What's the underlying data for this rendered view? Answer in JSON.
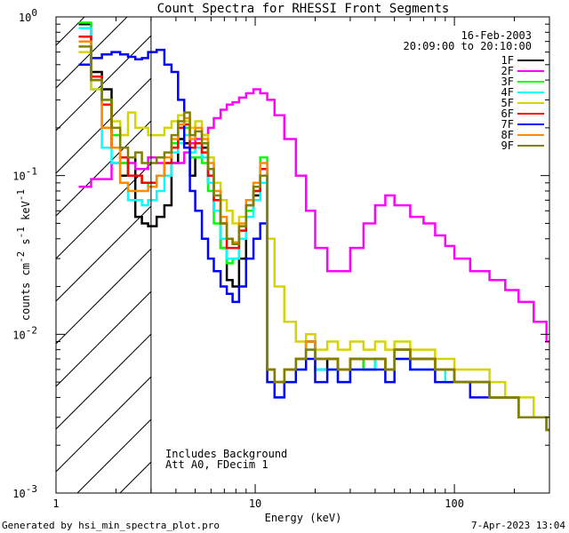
{
  "chart_data": {
    "type": "line",
    "title": "Count Spectra for RHESSI Front Segments",
    "xlabel": "Energy (keV)",
    "ylabel_main": "counts cm",
    "ylabel_exp1": "-2",
    "ylabel_mid": " s",
    "ylabel_exp2": "-1",
    "ylabel_mid2": " keV",
    "ylabel_exp3": "-1",
    "x_scale": "log",
    "y_scale": "log",
    "xlim": [
      1,
      300
    ],
    "ylim": [
      0.001,
      1
    ],
    "x_ticks": [
      {
        "value": 1,
        "label": "1"
      },
      {
        "value": 10,
        "label": "10"
      },
      {
        "value": 100,
        "label": "100"
      }
    ],
    "y_ticks": [
      {
        "value": 0.001,
        "base": "10",
        "exp": "-3"
      },
      {
        "value": 0.01,
        "base": "10",
        "exp": "-2"
      },
      {
        "value": 0.1,
        "base": "10",
        "exp": "-1"
      },
      {
        "value": 1,
        "base": "10",
        "exp": "0"
      }
    ],
    "date": "16-Feb-2003",
    "time_range": "20:09:00 to 20:10:00",
    "hatched_below_keV": 3,
    "notes": [
      "Includes Background",
      "Att A0, FDecim 1"
    ],
    "series": [
      {
        "name": "1F",
        "color": "#000000",
        "x": [
          1.3,
          1.5,
          1.7,
          1.9,
          2.1,
          2.3,
          2.5,
          2.7,
          2.9,
          3.2,
          3.5,
          3.8,
          4.1,
          4.4,
          4.7,
          5.0,
          5.4,
          5.8,
          6.2,
          6.7,
          7.2,
          7.7,
          8.3,
          9.0,
          9.8,
          10.6,
          11.5,
          12.5,
          14,
          16,
          18,
          20,
          23,
          26,
          30,
          35,
          40,
          45,
          50,
          60,
          70,
          80,
          90,
          100,
          120,
          150,
          180,
          210,
          250,
          290
        ],
        "y": [
          0.9,
          0.45,
          0.35,
          0.15,
          0.1,
          0.13,
          0.055,
          0.05,
          0.048,
          0.055,
          0.065,
          0.12,
          0.17,
          0.16,
          0.1,
          0.13,
          0.15,
          0.09,
          0.06,
          0.035,
          0.022,
          0.02,
          0.03,
          0.06,
          0.075,
          0.1,
          0.006,
          0.005,
          0.006,
          0.007,
          0.009,
          0.006,
          0.007,
          0.006,
          0.007,
          0.006,
          0.007,
          0.006,
          0.008,
          0.007,
          0.007,
          0.006,
          0.006,
          0.005,
          0.005,
          0.004,
          0.004,
          0.003,
          0.003,
          0.0025
        ]
      },
      {
        "name": "2F",
        "color": "#ff00ff",
        "x": [
          1.3,
          1.5,
          1.7,
          1.9,
          2.1,
          2.3,
          2.5,
          2.7,
          2.9,
          3.2,
          3.5,
          3.8,
          4.1,
          4.4,
          4.7,
          5.0,
          5.4,
          5.8,
          6.2,
          6.7,
          7.2,
          7.7,
          8.3,
          9.0,
          9.8,
          10.6,
          11.5,
          12.5,
          14,
          16,
          18,
          20,
          23,
          26,
          30,
          35,
          40,
          45,
          50,
          60,
          70,
          80,
          90,
          100,
          120,
          150,
          180,
          210,
          250,
          290
        ],
        "y": [
          0.085,
          0.095,
          0.095,
          0.12,
          0.12,
          0.12,
          0.11,
          0.11,
          0.13,
          0.12,
          0.12,
          0.12,
          0.12,
          0.14,
          0.16,
          0.17,
          0.18,
          0.2,
          0.23,
          0.26,
          0.28,
          0.29,
          0.31,
          0.33,
          0.35,
          0.33,
          0.3,
          0.24,
          0.17,
          0.1,
          0.06,
          0.035,
          0.025,
          0.025,
          0.035,
          0.05,
          0.065,
          0.075,
          0.065,
          0.055,
          0.05,
          0.042,
          0.036,
          0.03,
          0.025,
          0.022,
          0.019,
          0.016,
          0.012,
          0.009
        ]
      },
      {
        "name": "3F",
        "color": "#00ff00",
        "x": [
          1.3,
          1.5,
          1.7,
          1.9,
          2.1,
          2.3,
          2.5,
          2.7,
          2.9,
          3.2,
          3.5,
          3.8,
          4.1,
          4.4,
          4.7,
          5.0,
          5.4,
          5.8,
          6.2,
          6.7,
          7.2,
          7.7,
          8.3,
          9.0,
          9.8,
          10.6,
          11.5,
          12.5,
          14,
          16,
          18,
          20,
          23,
          26,
          30,
          35,
          40,
          45,
          50,
          60,
          70,
          80,
          90,
          100,
          120,
          150,
          180,
          210,
          250,
          290
        ],
        "y": [
          0.92,
          0.4,
          0.3,
          0.18,
          0.12,
          0.1,
          0.1,
          0.09,
          0.085,
          0.1,
          0.12,
          0.16,
          0.2,
          0.2,
          0.13,
          0.13,
          0.12,
          0.08,
          0.05,
          0.035,
          0.028,
          0.03,
          0.04,
          0.06,
          0.08,
          0.13,
          0.006,
          0.005,
          0.006,
          0.007,
          0.009,
          0.007,
          0.007,
          0.006,
          0.007,
          0.006,
          0.007,
          0.006,
          0.008,
          0.007,
          0.007,
          0.006,
          0.006,
          0.005,
          0.005,
          0.004,
          0.004,
          0.003,
          0.003,
          0.0025
        ]
      },
      {
        "name": "4F",
        "color": "#00ffff",
        "x": [
          1.3,
          1.5,
          1.7,
          1.9,
          2.1,
          2.3,
          2.5,
          2.7,
          2.9,
          3.2,
          3.5,
          3.8,
          4.1,
          4.4,
          4.7,
          5.0,
          5.4,
          5.8,
          6.2,
          6.7,
          7.2,
          7.7,
          8.3,
          9.0,
          9.8,
          10.6,
          11.5,
          12.5,
          14,
          16,
          18,
          20,
          23,
          26,
          30,
          35,
          40,
          45,
          50,
          60,
          70,
          80,
          90,
          100,
          120,
          150,
          180,
          210,
          250,
          290
        ],
        "y": [
          0.85,
          0.35,
          0.15,
          0.12,
          0.09,
          0.07,
          0.07,
          0.065,
          0.07,
          0.08,
          0.1,
          0.14,
          0.16,
          0.18,
          0.14,
          0.15,
          0.13,
          0.09,
          0.06,
          0.04,
          0.03,
          0.03,
          0.04,
          0.055,
          0.07,
          0.09,
          0.005,
          0.004,
          0.005,
          0.006,
          0.008,
          0.006,
          0.006,
          0.005,
          0.006,
          0.006,
          0.007,
          0.006,
          0.007,
          0.006,
          0.006,
          0.006,
          0.005,
          0.005,
          0.005,
          0.004,
          0.004,
          0.003,
          0.003,
          0.0025
        ]
      },
      {
        "name": "5F",
        "color": "#d4d400",
        "x": [
          1.3,
          1.5,
          1.7,
          1.9,
          2.1,
          2.3,
          2.5,
          2.7,
          2.9,
          3.2,
          3.5,
          3.8,
          4.1,
          4.4,
          4.7,
          5.0,
          5.4,
          5.8,
          6.2,
          6.7,
          7.2,
          7.7,
          8.3,
          9.0,
          9.8,
          10.6,
          11.5,
          12.5,
          14,
          16,
          18,
          20,
          23,
          26,
          30,
          35,
          40,
          45,
          50,
          60,
          70,
          80,
          90,
          100,
          120,
          150,
          180,
          210,
          250,
          290
        ],
        "y": [
          0.6,
          0.35,
          0.2,
          0.22,
          0.18,
          0.25,
          0.2,
          0.2,
          0.18,
          0.18,
          0.2,
          0.22,
          0.24,
          0.22,
          0.2,
          0.22,
          0.18,
          0.13,
          0.09,
          0.07,
          0.06,
          0.05,
          0.055,
          0.065,
          0.08,
          0.1,
          0.04,
          0.02,
          0.012,
          0.009,
          0.01,
          0.008,
          0.009,
          0.008,
          0.009,
          0.008,
          0.009,
          0.008,
          0.009,
          0.008,
          0.008,
          0.007,
          0.007,
          0.006,
          0.006,
          0.005,
          0.004,
          0.004,
          0.003,
          0.003
        ]
      },
      {
        "name": "6F",
        "color": "#ff0000",
        "x": [
          1.3,
          1.5,
          1.7,
          1.9,
          2.1,
          2.3,
          2.5,
          2.7,
          2.9,
          3.2,
          3.5,
          3.8,
          4.1,
          4.4,
          4.7,
          5.0,
          5.4,
          5.8,
          6.2,
          6.7,
          7.2,
          7.7,
          8.3,
          9.0,
          9.8,
          10.6,
          11.5,
          12.5,
          14,
          16,
          18,
          20,
          23,
          26,
          30,
          35,
          40,
          45,
          50,
          60,
          70,
          80,
          90,
          100,
          120,
          150,
          180,
          210,
          250,
          290
        ],
        "y": [
          0.75,
          0.42,
          0.28,
          0.15,
          0.13,
          0.1,
          0.1,
          0.09,
          0.09,
          0.1,
          0.12,
          0.15,
          0.2,
          0.21,
          0.15,
          0.16,
          0.14,
          0.1,
          0.07,
          0.05,
          0.035,
          0.035,
          0.045,
          0.065,
          0.08,
          0.11,
          0.006,
          0.005,
          0.006,
          0.007,
          0.009,
          0.007,
          0.007,
          0.006,
          0.007,
          0.007,
          0.007,
          0.006,
          0.008,
          0.007,
          0.007,
          0.006,
          0.006,
          0.005,
          0.005,
          0.004,
          0.004,
          0.003,
          0.003,
          0.0025
        ]
      },
      {
        "name": "7F",
        "color": "#0000ff",
        "x": [
          1.3,
          1.5,
          1.7,
          1.9,
          2.1,
          2.3,
          2.5,
          2.7,
          2.9,
          3.2,
          3.5,
          3.8,
          4.1,
          4.4,
          4.7,
          5.0,
          5.4,
          5.8,
          6.2,
          6.7,
          7.2,
          7.7,
          8.3,
          9.0,
          9.8,
          10.6,
          11.5,
          12.5,
          14,
          16,
          18,
          20,
          23,
          26,
          30,
          35,
          40,
          45,
          50,
          60,
          70,
          80,
          90,
          100,
          120,
          150,
          180,
          210,
          250,
          290
        ],
        "y": [
          0.5,
          0.55,
          0.58,
          0.6,
          0.58,
          0.56,
          0.54,
          0.55,
          0.6,
          0.62,
          0.5,
          0.45,
          0.3,
          0.15,
          0.08,
          0.06,
          0.04,
          0.03,
          0.025,
          0.02,
          0.018,
          0.016,
          0.02,
          0.03,
          0.04,
          0.05,
          0.005,
          0.004,
          0.005,
          0.006,
          0.007,
          0.005,
          0.006,
          0.005,
          0.006,
          0.006,
          0.006,
          0.005,
          0.007,
          0.006,
          0.006,
          0.005,
          0.005,
          0.005,
          0.004,
          0.004,
          0.004,
          0.003,
          0.003,
          0.0025
        ]
      },
      {
        "name": "8F",
        "color": "#ff8c00",
        "x": [
          1.3,
          1.5,
          1.7,
          1.9,
          2.1,
          2.3,
          2.5,
          2.7,
          2.9,
          3.2,
          3.5,
          3.8,
          4.1,
          4.4,
          4.7,
          5.0,
          5.4,
          5.8,
          6.2,
          6.7,
          7.2,
          7.7,
          8.3,
          9.0,
          9.8,
          10.6,
          11.5,
          12.5,
          14,
          16,
          18,
          20,
          23,
          26,
          30,
          35,
          40,
          45,
          50,
          60,
          70,
          80,
          90,
          100,
          120,
          150,
          180,
          210,
          250,
          290
        ],
        "y": [
          0.7,
          0.4,
          0.2,
          0.15,
          0.09,
          0.08,
          0.08,
          0.08,
          0.085,
          0.1,
          0.13,
          0.17,
          0.21,
          0.23,
          0.17,
          0.2,
          0.17,
          0.12,
          0.08,
          0.055,
          0.04,
          0.038,
          0.05,
          0.07,
          0.09,
          0.12,
          0.006,
          0.005,
          0.006,
          0.007,
          0.009,
          0.007,
          0.007,
          0.006,
          0.007,
          0.007,
          0.007,
          0.006,
          0.008,
          0.007,
          0.007,
          0.006,
          0.006,
          0.005,
          0.005,
          0.004,
          0.004,
          0.003,
          0.003,
          0.0025
        ]
      },
      {
        "name": "9F",
        "color": "#808000",
        "x": [
          1.3,
          1.5,
          1.7,
          1.9,
          2.1,
          2.3,
          2.5,
          2.7,
          2.9,
          3.2,
          3.5,
          3.8,
          4.1,
          4.4,
          4.7,
          5.0,
          5.4,
          5.8,
          6.2,
          6.7,
          7.2,
          7.7,
          8.3,
          9.0,
          9.8,
          10.6,
          11.5,
          12.5,
          14,
          16,
          18,
          20,
          23,
          26,
          30,
          35,
          40,
          45,
          50,
          60,
          70,
          80,
          90,
          100,
          120,
          150,
          180,
          210,
          250,
          290
        ],
        "y": [
          0.65,
          0.4,
          0.3,
          0.2,
          0.15,
          0.13,
          0.14,
          0.12,
          0.12,
          0.13,
          0.14,
          0.18,
          0.22,
          0.25,
          0.18,
          0.19,
          0.16,
          0.11,
          0.075,
          0.05,
          0.04,
          0.037,
          0.048,
          0.065,
          0.085,
          0.1,
          0.006,
          0.005,
          0.006,
          0.007,
          0.008,
          0.007,
          0.007,
          0.006,
          0.007,
          0.007,
          0.007,
          0.006,
          0.008,
          0.007,
          0.007,
          0.006,
          0.006,
          0.005,
          0.005,
          0.004,
          0.004,
          0.003,
          0.003,
          0.0025
        ]
      }
    ]
  },
  "footer": {
    "generated_by": "Generated by hsi_min_spectra_plot.pro",
    "timestamp": "7-Apr-2023 13:04"
  }
}
